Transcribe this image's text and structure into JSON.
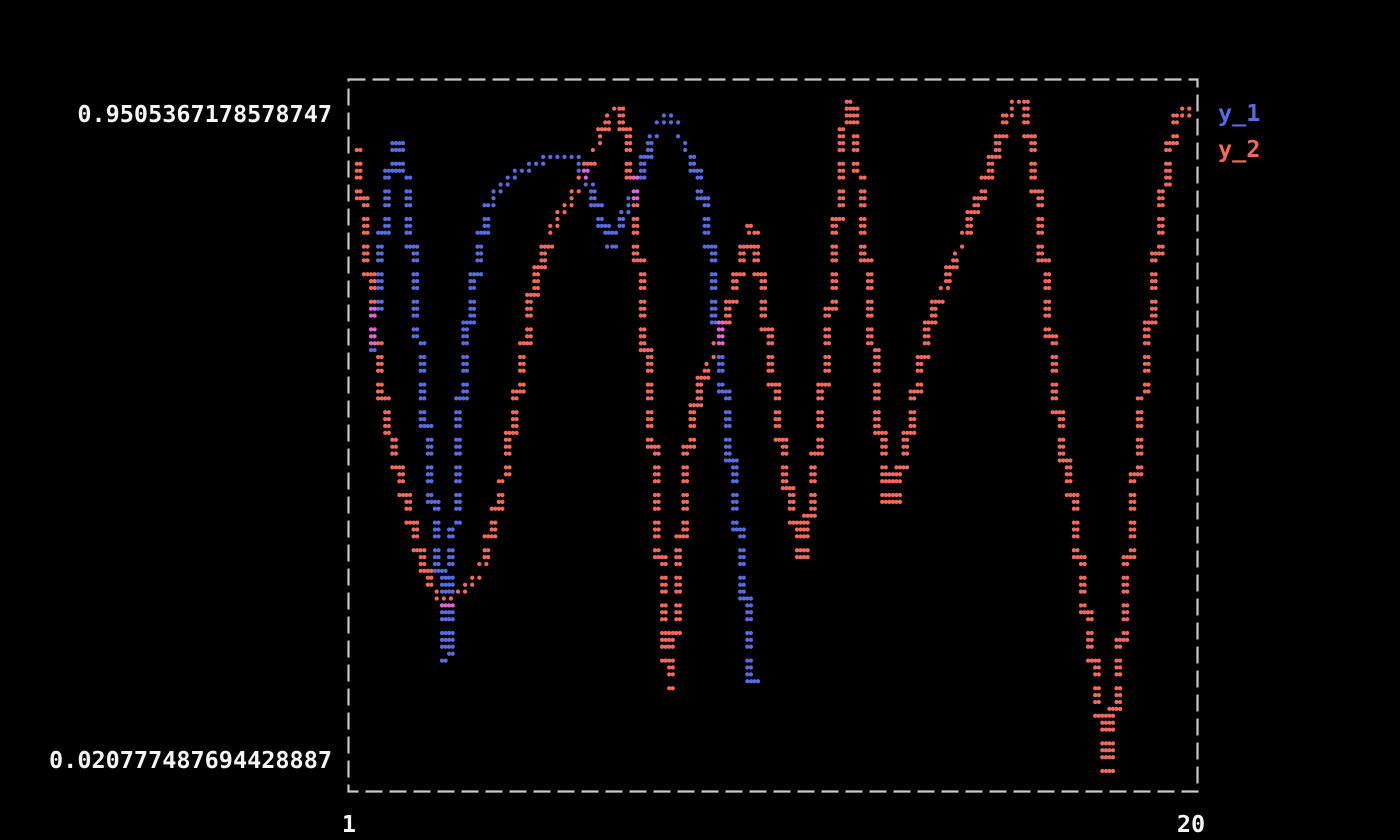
{
  "figure": {
    "background_color": "#000000",
    "border_color": "#c9c9c9",
    "text_color": "#f5f5f5",
    "y_max_label": "0.9505367178578747",
    "y_min_label": "0.020777487694428887",
    "x_min_label": "1",
    "x_max_label": "20"
  },
  "legend": {
    "items": [
      {
        "label": "y_1",
        "color": "#5a6ae0"
      },
      {
        "label": "y_2",
        "color": "#f4695e"
      }
    ]
  },
  "chart_data": {
    "type": "scatter",
    "title": "",
    "xlabel": "",
    "ylabel": "",
    "x_range": [
      1,
      20
    ],
    "y_range": [
      0.020777487694428887,
      0.9505367178578747
    ],
    "grid": false,
    "legend_position": "outside-top-right",
    "marker": "dot",
    "overlap_color": "#e464d8",
    "series": [
      {
        "name": "y_1",
        "color": "#5a6ae0",
        "points": [
          [
            1.54,
            0.602
          ],
          [
            1.63,
            0.66
          ],
          [
            1.72,
            0.718
          ],
          [
            1.8,
            0.773
          ],
          [
            1.89,
            0.823
          ],
          [
            1.98,
            0.865
          ],
          [
            2.07,
            0.89
          ],
          [
            2.14,
            0.894
          ],
          [
            2.21,
            0.879
          ],
          [
            2.27,
            0.847
          ],
          [
            2.34,
            0.805
          ],
          [
            2.41,
            0.757
          ],
          [
            2.48,
            0.704
          ],
          [
            2.54,
            0.653
          ],
          [
            2.61,
            0.602
          ],
          [
            2.68,
            0.549
          ],
          [
            2.74,
            0.501
          ],
          [
            2.81,
            0.455
          ],
          [
            2.88,
            0.411
          ],
          [
            2.94,
            0.369
          ],
          [
            3.01,
            0.328
          ],
          [
            3.08,
            0.286
          ],
          [
            3.12,
            0.245
          ],
          [
            3.17,
            0.203
          ],
          [
            3.21,
            0.179
          ],
          [
            3.26,
            0.217
          ],
          [
            3.3,
            0.266
          ],
          [
            3.35,
            0.321
          ],
          [
            3.39,
            0.376
          ],
          [
            3.44,
            0.428
          ],
          [
            3.48,
            0.48
          ],
          [
            3.53,
            0.529
          ],
          [
            3.59,
            0.577
          ],
          [
            3.66,
            0.621
          ],
          [
            3.73,
            0.66
          ],
          [
            3.82,
            0.699
          ],
          [
            3.91,
            0.732
          ],
          [
            4.0,
            0.76
          ],
          [
            4.08,
            0.785
          ],
          [
            4.17,
            0.804
          ],
          [
            4.29,
            0.82
          ],
          [
            4.4,
            0.83
          ],
          [
            4.53,
            0.838
          ],
          [
            4.67,
            0.844
          ],
          [
            4.8,
            0.848
          ],
          [
            4.93,
            0.852
          ],
          [
            5.07,
            0.856
          ],
          [
            5.23,
            0.862
          ],
          [
            5.38,
            0.867
          ],
          [
            5.54,
            0.872
          ],
          [
            5.69,
            0.87
          ],
          [
            5.87,
            0.872
          ],
          [
            6.05,
            0.87
          ],
          [
            6.19,
            0.858
          ],
          [
            6.32,
            0.843
          ],
          [
            6.43,
            0.826
          ],
          [
            6.54,
            0.808
          ],
          [
            6.66,
            0.787
          ],
          [
            6.74,
            0.768
          ],
          [
            6.81,
            0.753
          ],
          [
            6.88,
            0.743
          ],
          [
            6.97,
            0.76
          ],
          [
            7.08,
            0.782
          ],
          [
            7.19,
            0.798
          ],
          [
            7.3,
            0.812
          ],
          [
            7.41,
            0.823
          ],
          [
            7.53,
            0.847
          ],
          [
            7.64,
            0.87
          ],
          [
            7.75,
            0.892
          ],
          [
            7.86,
            0.909
          ],
          [
            7.97,
            0.923
          ],
          [
            8.06,
            0.93
          ],
          [
            8.15,
            0.933
          ],
          [
            8.24,
            0.927
          ],
          [
            8.33,
            0.913
          ],
          [
            8.42,
            0.9
          ],
          [
            8.51,
            0.888
          ],
          [
            8.6,
            0.879
          ],
          [
            8.69,
            0.87
          ],
          [
            8.76,
            0.856
          ],
          [
            8.85,
            0.837
          ],
          [
            8.94,
            0.812
          ],
          [
            9.0,
            0.785
          ],
          [
            9.07,
            0.754
          ],
          [
            9.14,
            0.722
          ],
          [
            9.18,
            0.69
          ],
          [
            9.23,
            0.66
          ],
          [
            9.27,
            0.632
          ],
          [
            9.32,
            0.605
          ],
          [
            9.38,
            0.566
          ],
          [
            9.45,
            0.524
          ],
          [
            9.52,
            0.483
          ],
          [
            9.58,
            0.441
          ],
          [
            9.65,
            0.4
          ],
          [
            9.72,
            0.36
          ],
          [
            9.79,
            0.321
          ],
          [
            9.85,
            0.284
          ],
          [
            9.92,
            0.245
          ],
          [
            9.96,
            0.21
          ],
          [
            10.01,
            0.176
          ],
          [
            10.05,
            0.143
          ]
        ]
      },
      {
        "name": "y_2",
        "color": "#f4695e",
        "points": [
          [
            1.2,
            0.884
          ],
          [
            1.34,
            0.798
          ],
          [
            1.47,
            0.715
          ],
          [
            1.6,
            0.632
          ],
          [
            1.74,
            0.556
          ],
          [
            1.89,
            0.501
          ],
          [
            2.05,
            0.459
          ],
          [
            2.21,
            0.425
          ],
          [
            2.36,
            0.383
          ],
          [
            2.52,
            0.342
          ],
          [
            2.68,
            0.307
          ],
          [
            2.83,
            0.282
          ],
          [
            2.99,
            0.266
          ],
          [
            3.15,
            0.257
          ],
          [
            3.24,
            0.255
          ],
          [
            3.41,
            0.267
          ],
          [
            3.59,
            0.273
          ],
          [
            3.77,
            0.282
          ],
          [
            3.93,
            0.3
          ],
          [
            4.06,
            0.32
          ],
          [
            4.17,
            0.345
          ],
          [
            4.29,
            0.376
          ],
          [
            4.4,
            0.408
          ],
          [
            4.51,
            0.432
          ],
          [
            4.64,
            0.483
          ],
          [
            4.78,
            0.535
          ],
          [
            4.91,
            0.591
          ],
          [
            5.05,
            0.646
          ],
          [
            5.18,
            0.7
          ],
          [
            5.34,
            0.732
          ],
          [
            5.49,
            0.76
          ],
          [
            5.65,
            0.782
          ],
          [
            5.81,
            0.798
          ],
          [
            5.96,
            0.809
          ],
          [
            6.14,
            0.829
          ],
          [
            6.3,
            0.851
          ],
          [
            6.43,
            0.872
          ],
          [
            6.57,
            0.888
          ],
          [
            6.7,
            0.906
          ],
          [
            6.81,
            0.924
          ],
          [
            6.9,
            0.938
          ],
          [
            6.99,
            0.943
          ],
          [
            7.08,
            0.934
          ],
          [
            7.17,
            0.917
          ],
          [
            7.24,
            0.892
          ],
          [
            7.3,
            0.865
          ],
          [
            7.37,
            0.829
          ],
          [
            7.44,
            0.785
          ],
          [
            7.5,
            0.732
          ],
          [
            7.59,
            0.667
          ],
          [
            7.68,
            0.594
          ],
          [
            7.77,
            0.515
          ],
          [
            7.86,
            0.436
          ],
          [
            7.93,
            0.37
          ],
          [
            8.0,
            0.304
          ],
          [
            8.06,
            0.239
          ],
          [
            8.13,
            0.179
          ],
          [
            8.2,
            0.132
          ],
          [
            8.29,
            0.204
          ],
          [
            8.38,
            0.28
          ],
          [
            8.47,
            0.356
          ],
          [
            8.56,
            0.425
          ],
          [
            8.64,
            0.484
          ],
          [
            8.76,
            0.522
          ],
          [
            8.87,
            0.552
          ],
          [
            9.0,
            0.577
          ],
          [
            9.14,
            0.596
          ],
          [
            9.27,
            0.614
          ],
          [
            9.41,
            0.639
          ],
          [
            9.54,
            0.667
          ],
          [
            9.67,
            0.699
          ],
          [
            9.81,
            0.732
          ],
          [
            9.92,
            0.76
          ],
          [
            10.03,
            0.776
          ],
          [
            10.12,
            0.746
          ],
          [
            10.21,
            0.708
          ],
          [
            10.3,
            0.667
          ],
          [
            10.39,
            0.621
          ],
          [
            10.48,
            0.574
          ],
          [
            10.57,
            0.529
          ],
          [
            10.66,
            0.487
          ],
          [
            10.75,
            0.45
          ],
          [
            10.84,
            0.415
          ],
          [
            10.93,
            0.381
          ],
          [
            11.02,
            0.356
          ],
          [
            11.08,
            0.335
          ],
          [
            11.15,
            0.318
          ],
          [
            11.24,
            0.342
          ],
          [
            11.33,
            0.381
          ],
          [
            11.42,
            0.428
          ],
          [
            11.51,
            0.477
          ],
          [
            11.6,
            0.533
          ],
          [
            11.69,
            0.594
          ],
          [
            11.78,
            0.657
          ],
          [
            11.86,
            0.721
          ],
          [
            11.95,
            0.785
          ],
          [
            12.02,
            0.843
          ],
          [
            12.09,
            0.895
          ],
          [
            12.13,
            0.937
          ],
          [
            12.2,
            0.9505
          ],
          [
            12.29,
            0.93
          ],
          [
            12.38,
            0.879
          ],
          [
            12.47,
            0.818
          ],
          [
            12.56,
            0.75
          ],
          [
            12.65,
            0.681
          ],
          [
            12.74,
            0.612
          ],
          [
            12.83,
            0.542
          ],
          [
            12.92,
            0.473
          ],
          [
            12.98,
            0.425
          ],
          [
            13.05,
            0.393
          ],
          [
            13.14,
            0.433
          ],
          [
            13.23,
            0.408
          ],
          [
            13.27,
            0.39
          ],
          [
            13.38,
            0.439
          ],
          [
            13.52,
            0.487
          ],
          [
            13.65,
            0.535
          ],
          [
            13.79,
            0.58
          ],
          [
            13.92,
            0.618
          ],
          [
            14.05,
            0.652
          ],
          [
            14.21,
            0.678
          ],
          [
            14.37,
            0.699
          ],
          [
            14.52,
            0.724
          ],
          [
            14.68,
            0.747
          ],
          [
            14.84,
            0.771
          ],
          [
            14.99,
            0.796
          ],
          [
            15.15,
            0.822
          ],
          [
            15.31,
            0.851
          ],
          [
            15.46,
            0.879
          ],
          [
            15.62,
            0.905
          ],
          [
            15.75,
            0.927
          ],
          [
            15.89,
            0.945
          ],
          [
            16.0,
            0.9505
          ],
          [
            16.11,
            0.944
          ],
          [
            16.2,
            0.916
          ],
          [
            16.29,
            0.879
          ],
          [
            16.38,
            0.833
          ],
          [
            16.47,
            0.782
          ],
          [
            16.56,
            0.726
          ],
          [
            16.65,
            0.667
          ],
          [
            16.74,
            0.605
          ],
          [
            16.83,
            0.542
          ],
          [
            16.92,
            0.497
          ],
          [
            17.01,
            0.455
          ],
          [
            17.1,
            0.428
          ],
          [
            17.19,
            0.4
          ],
          [
            17.27,
            0.356
          ],
          [
            17.36,
            0.311
          ],
          [
            17.45,
            0.266
          ],
          [
            17.54,
            0.224
          ],
          [
            17.63,
            0.187
          ],
          [
            17.72,
            0.148
          ],
          [
            17.81,
            0.107
          ],
          [
            17.88,
            0.072
          ],
          [
            17.95,
            0.031
          ],
          [
            17.99,
            0.0208
          ],
          [
            18.06,
            0.058
          ],
          [
            18.13,
            0.1
          ],
          [
            18.19,
            0.137
          ],
          [
            18.26,
            0.183
          ],
          [
            18.33,
            0.228
          ],
          [
            18.39,
            0.273
          ],
          [
            18.46,
            0.321
          ],
          [
            18.53,
            0.37
          ],
          [
            18.59,
            0.414
          ],
          [
            18.66,
            0.464
          ],
          [
            18.73,
            0.515
          ],
          [
            18.82,
            0.574
          ],
          [
            18.91,
            0.632
          ],
          [
            19.0,
            0.688
          ],
          [
            19.09,
            0.74
          ],
          [
            19.17,
            0.791
          ],
          [
            19.26,
            0.833
          ],
          [
            19.35,
            0.87
          ],
          [
            19.44,
            0.902
          ],
          [
            19.53,
            0.926
          ],
          [
            19.62,
            0.939
          ],
          [
            19.73,
            0.93
          ],
          [
            19.82,
            0.934
          ],
          [
            19.91,
            0.939
          ]
        ]
      }
    ]
  }
}
